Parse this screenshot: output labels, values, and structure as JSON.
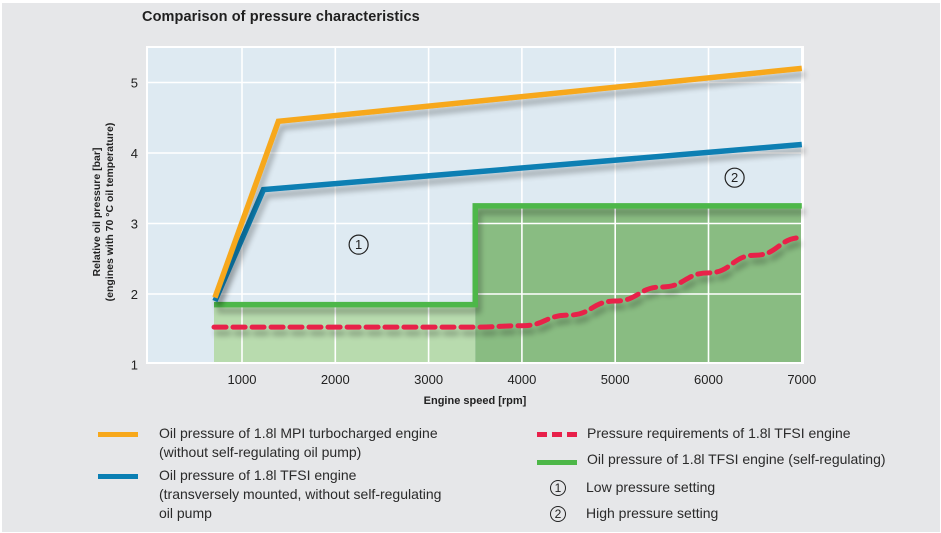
{
  "chart_data": {
    "type": "line",
    "title": "Comparison of pressure characteristics",
    "xlabel": "Engine speed [rpm]",
    "ylabel": "Relative oil pressure [bar]",
    "ylabel_sub": "(engines with 70 °C oil temperature)",
    "xlim": [
      0,
      7000
    ],
    "ylim": [
      1,
      5.4
    ],
    "xticks": [
      1000,
      2000,
      3000,
      4000,
      5000,
      6000,
      7000
    ],
    "yticks": [
      1,
      2,
      3,
      4,
      5
    ],
    "grid": true,
    "legend_position": "bottom",
    "series": [
      {
        "name": "Oil pressure of 1.8l MPI turbocharged engine",
        "name_sub": "(without self-regulating oil pump)",
        "style": "solid",
        "color": "#f7a81b",
        "x": [
          710,
          1390,
          7000
        ],
        "y": [
          1.95,
          4.45,
          5.2
        ]
      },
      {
        "name": "Oil pressure of 1.8l TFSI engine",
        "name_sub": "(transversely mounted, without self-regulating",
        "name_sub2": "oil pump",
        "style": "solid",
        "color": "#0a7fb3",
        "x": [
          710,
          1230,
          7000
        ],
        "y": [
          1.9,
          3.48,
          4.12
        ]
      },
      {
        "name": "Pressure requirements of 1.8l TFSI engine",
        "style": "dashed",
        "color": "#e8204a",
        "x": [
          700,
          1000,
          2000,
          3000,
          3500,
          4000,
          4500,
          5000,
          5500,
          6000,
          6500,
          7000
        ],
        "y": [
          1.53,
          1.53,
          1.53,
          1.53,
          1.53,
          1.55,
          1.7,
          1.9,
          2.1,
          2.3,
          2.55,
          2.8
        ]
      },
      {
        "name": "Oil pressure of 1.8l TFSI engine (self-regulating)",
        "style": "solid-filled-step",
        "color": "#4db748",
        "x": [
          700,
          3500,
          3500,
          7000
        ],
        "y": [
          1.85,
          1.85,
          3.25,
          3.25
        ]
      }
    ],
    "regions": [
      {
        "label": "1",
        "description": "Low pressure setting",
        "x_range": [
          700,
          3500
        ],
        "color": "#b8dbae",
        "marker_at": [
          2250,
          2.7
        ]
      },
      {
        "label": "2",
        "description": "High pressure setting",
        "x_range": [
          3500,
          7000
        ],
        "color": "#89bc82",
        "marker_at": [
          6280,
          3.65
        ]
      }
    ]
  },
  "legend": {
    "left": [
      {
        "line1": "Oil pressure of 1.8l MPI turbocharged engine",
        "line2": "(without self-regulating oil pump)",
        "color": "#f7a81b"
      },
      {
        "line1": "Oil pressure of 1.8l TFSI engine",
        "line2": "(transversely mounted, without self-regulating",
        "line3": "oil pump",
        "color": "#0a7fb3"
      }
    ],
    "right": [
      {
        "line1": "Pressure requirements of 1.8l TFSI engine",
        "color": "#e8204a"
      },
      {
        "line1": "Oil pressure of 1.8l TFSI engine (self-regulating)",
        "color": "#4db748"
      },
      {
        "marker": "1",
        "line1": "Low pressure setting"
      },
      {
        "marker": "2",
        "line1": "High pressure setting"
      }
    ]
  }
}
